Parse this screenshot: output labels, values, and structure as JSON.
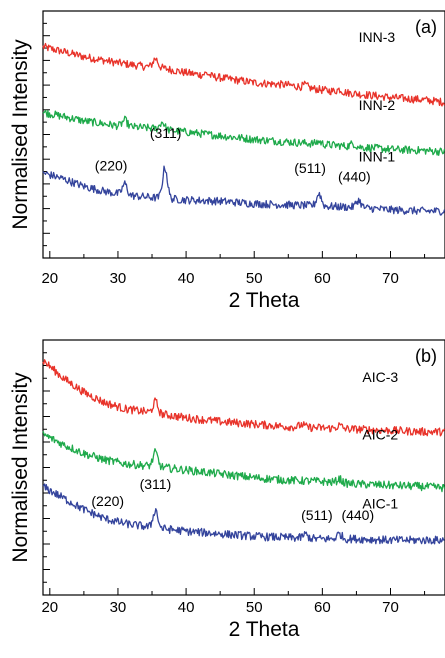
{
  "chart_data": [
    {
      "type": "line",
      "panel_label": "(a)",
      "xlabel": "2 Theta",
      "ylabel": "Normalised Intensity",
      "xlim": [
        19,
        78
      ],
      "ylim": [
        0,
        10
      ],
      "x_ticks": [
        20,
        30,
        40,
        50,
        60,
        70
      ],
      "y_ticks_unlabeled": true,
      "series": [
        {
          "name": "INN-3",
          "color": "#e8332a",
          "label_at": [
            68,
            8.75
          ],
          "points": [
            [
              19,
              8.55
            ],
            [
              25,
              8.15
            ],
            [
              30,
              7.9
            ],
            [
              34,
              7.75
            ],
            [
              36,
              7.72
            ],
            [
              40,
              7.5
            ],
            [
              45,
              7.3
            ],
            [
              50,
              7.1
            ],
            [
              55,
              7.0
            ],
            [
              60,
              6.8
            ],
            [
              65,
              6.65
            ],
            [
              70,
              6.5
            ],
            [
              75,
              6.4
            ],
            [
              78,
              6.3
            ]
          ],
          "peaks": [
            [
              35.5,
              0.35
            ],
            [
              43,
              0.1
            ],
            [
              57.5,
              0.1
            ],
            [
              62.5,
              0.1
            ]
          ]
        },
        {
          "name": "INN-2",
          "color": "#1faa4b",
          "label_at": [
            68,
            6.0
          ],
          "points": [
            [
              19,
              5.9
            ],
            [
              25,
              5.55
            ],
            [
              30,
              5.35
            ],
            [
              35,
              5.25
            ],
            [
              40,
              5.1
            ],
            [
              45,
              4.95
            ],
            [
              50,
              4.8
            ],
            [
              55,
              4.7
            ],
            [
              60,
              4.6
            ],
            [
              65,
              4.5
            ],
            [
              70,
              4.4
            ],
            [
              75,
              4.35
            ],
            [
              78,
              4.3
            ]
          ],
          "peaks": [
            [
              31,
              0.25
            ],
            [
              36.5,
              0.3
            ],
            [
              59.5,
              0.1
            ],
            [
              64.5,
              0.12
            ]
          ]
        },
        {
          "name": "INN-1",
          "color": "#34449c",
          "label_at": [
            68,
            3.9
          ],
          "points": [
            [
              19,
              3.45
            ],
            [
              22,
              3.2
            ],
            [
              25,
              2.9
            ],
            [
              28,
              2.7
            ],
            [
              31,
              2.55
            ],
            [
              35,
              2.45
            ],
            [
              40,
              2.35
            ],
            [
              45,
              2.3
            ],
            [
              50,
              2.2
            ],
            [
              55,
              2.15
            ],
            [
              60,
              2.1
            ],
            [
              65,
              2.05
            ],
            [
              70,
              1.95
            ],
            [
              75,
              1.9
            ],
            [
              78,
              1.9
            ]
          ],
          "peaks": [
            [
              31,
              0.45
            ],
            [
              36.9,
              1.25
            ],
            [
              59.5,
              0.5
            ],
            [
              65.3,
              0.3
            ]
          ]
        }
      ],
      "annotations": [
        {
          "text": "(220)",
          "x": 29,
          "y": 3.55
        },
        {
          "text": "(311)",
          "x": 37,
          "y": 4.85
        },
        {
          "text": "(511)",
          "x": 58.2,
          "y": 3.45
        },
        {
          "text": "(440)",
          "x": 64.7,
          "y": 3.1
        }
      ]
    },
    {
      "type": "line",
      "panel_label": "(b)",
      "xlabel": "2 Theta",
      "ylabel": "Normalised Intensity",
      "xlim": [
        19,
        78
      ],
      "ylim": [
        0,
        10
      ],
      "x_ticks": [
        20,
        30,
        40,
        50,
        60,
        70
      ],
      "y_ticks_unlabeled": true,
      "series": [
        {
          "name": "AIC-3",
          "color": "#e8332a",
          "label_at": [
            68.5,
            8.35
          ],
          "points": [
            [
              19,
              9.2
            ],
            [
              22,
              8.5
            ],
            [
              25,
              7.95
            ],
            [
              28,
              7.55
            ],
            [
              31,
              7.3
            ],
            [
              35,
              7.15
            ],
            [
              40,
              6.95
            ],
            [
              45,
              6.8
            ],
            [
              50,
              6.7
            ],
            [
              55,
              6.6
            ],
            [
              60,
              6.55
            ],
            [
              65,
              6.5
            ],
            [
              70,
              6.45
            ],
            [
              75,
              6.4
            ],
            [
              78,
              6.4
            ]
          ],
          "peaks": [
            [
              35.5,
              0.45
            ],
            [
              57,
              0.1
            ],
            [
              62.5,
              0.12
            ]
          ]
        },
        {
          "name": "AIC-2",
          "color": "#1faa4b",
          "label_at": [
            68.5,
            6.1
          ],
          "points": [
            [
              19,
              6.3
            ],
            [
              22,
              5.9
            ],
            [
              25,
              5.55
            ],
            [
              28,
              5.3
            ],
            [
              31,
              5.15
            ],
            [
              35,
              5.05
            ],
            [
              40,
              4.9
            ],
            [
              45,
              4.75
            ],
            [
              50,
              4.6
            ],
            [
              55,
              4.5
            ],
            [
              60,
              4.45
            ],
            [
              65,
              4.35
            ],
            [
              70,
              4.3
            ],
            [
              75,
              4.25
            ],
            [
              78,
              4.2
            ]
          ],
          "peaks": [
            [
              35.5,
              0.55
            ],
            [
              62.5,
              0.15
            ]
          ]
        },
        {
          "name": "AIC-1",
          "color": "#34449c",
          "label_at": [
            68.5,
            3.4
          ],
          "points": [
            [
              19,
              4.25
            ],
            [
              22,
              3.8
            ],
            [
              25,
              3.35
            ],
            [
              28,
              3.0
            ],
            [
              31,
              2.8
            ],
            [
              35,
              2.65
            ],
            [
              40,
              2.5
            ],
            [
              45,
              2.4
            ],
            [
              50,
              2.3
            ],
            [
              55,
              2.25
            ],
            [
              60,
              2.2
            ],
            [
              65,
              2.2
            ],
            [
              70,
              2.15
            ],
            [
              75,
              2.15
            ],
            [
              78,
              2.15
            ]
          ],
          "peaks": [
            [
              35.5,
              0.7
            ],
            [
              57.5,
              0.15
            ],
            [
              62.5,
              0.2
            ]
          ]
        }
      ],
      "annotations": [
        {
          "text": "(220)",
          "x": 28.5,
          "y": 3.5
        },
        {
          "text": "(311)",
          "x": 35.5,
          "y": 4.15
        },
        {
          "text": "(511)",
          "x": 59.2,
          "y": 2.95
        },
        {
          "text": "(440)",
          "x": 65.2,
          "y": 2.95
        }
      ]
    }
  ]
}
